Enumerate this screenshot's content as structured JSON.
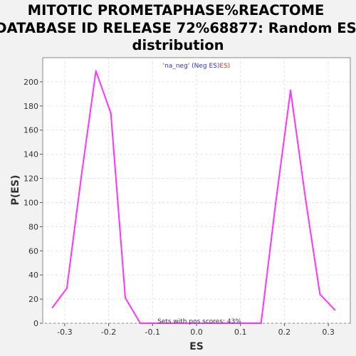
{
  "chart_data": {
    "type": "line",
    "title_lines": [
      "MITOTIC PROMETAPHASE%REACTOME",
      "DATABASE ID RELEASE 72%68877: Random ES",
      "distribution"
    ],
    "xlabel": "ES",
    "ylabel": "P(ES)",
    "xlim": [
      -0.35,
      0.35
    ],
    "ylim": [
      0,
      220
    ],
    "xticks": [
      -0.3,
      -0.2,
      -0.1,
      0.0,
      0.1,
      0.2,
      0.3
    ],
    "xtick_labels": [
      "-0.3",
      "-0.2",
      "-0.1",
      "0.0",
      "0.1",
      "0.2",
      "0.3"
    ],
    "yticks": [
      0,
      20,
      40,
      60,
      80,
      100,
      120,
      140,
      160,
      180,
      200
    ],
    "ytick_labels": [
      "0",
      "20",
      "40",
      "60",
      "80",
      "100",
      "120",
      "140",
      "160",
      "180",
      "200"
    ],
    "grid": true,
    "legend": {
      "placement": "top-center",
      "parts": [
        {
          "text": "'na_neg' (Neg ES)",
          "color": "#3333cc"
        },
        {
          "text": "ES)",
          "color": "#cc3333"
        }
      ]
    },
    "annotation": "Sets with pos scores: 43%",
    "series": [
      {
        "color": "#ff33ff",
        "x": [
          -0.328,
          -0.295,
          -0.262,
          -0.229,
          -0.195,
          -0.162,
          -0.128,
          0.147,
          0.18,
          0.214,
          0.248,
          0.281,
          0.315
        ],
        "y": [
          13,
          29,
          122,
          209,
          174,
          21,
          0,
          0,
          99,
          193,
          103,
          24,
          11
        ]
      }
    ]
  }
}
